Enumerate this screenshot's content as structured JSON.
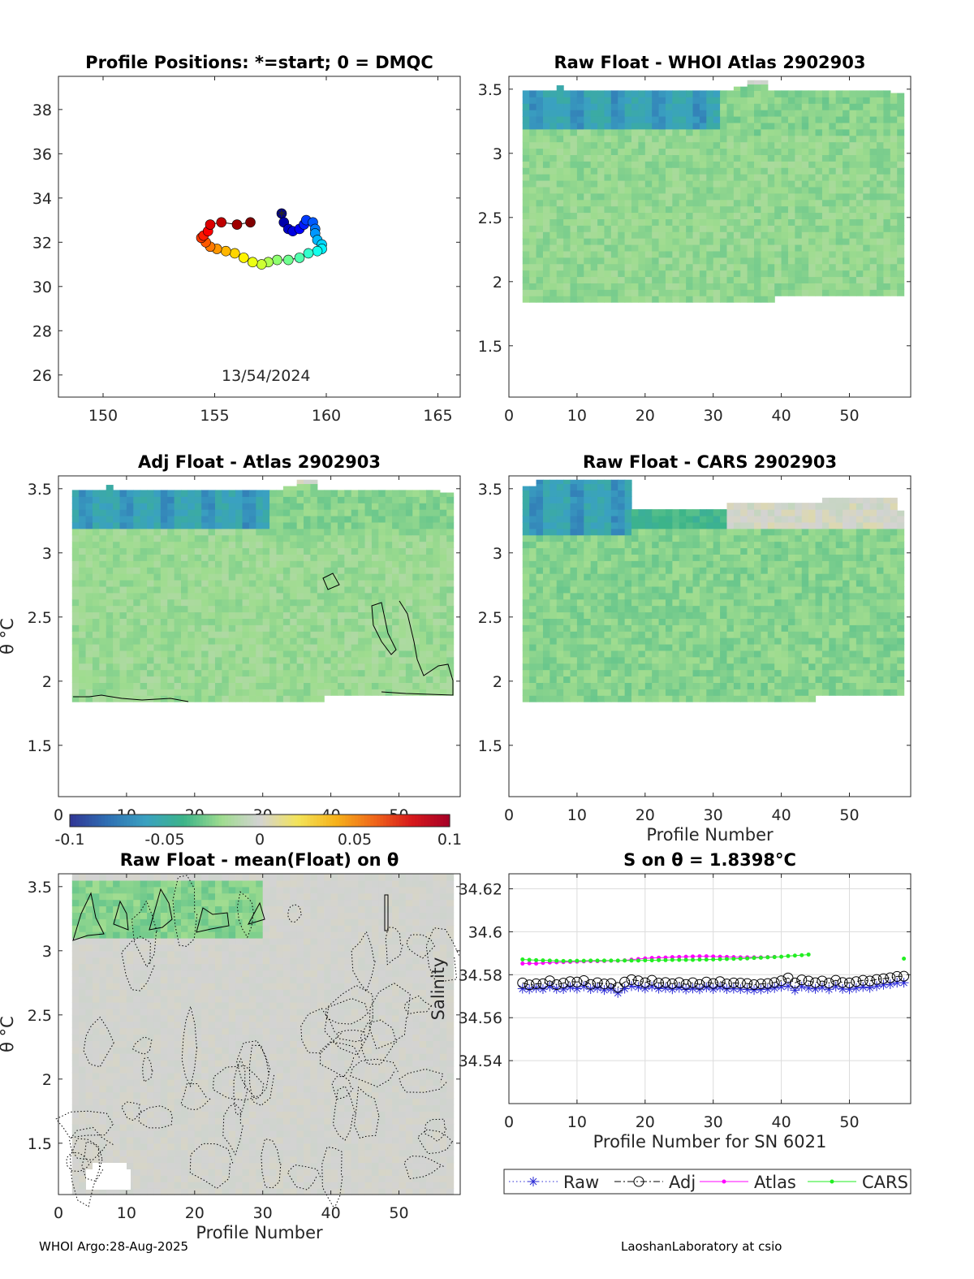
{
  "footer": {
    "left": "WHOI Argo:28-Aug-2025",
    "right": "LaoshanLaboratory at csio"
  },
  "colors": {
    "axis": "#262626",
    "grid": "#dcdcdc",
    "raw": "#2a2ad6",
    "adj": "#000000",
    "atlas": "#ff00ff",
    "cars": "#22ee22",
    "contour": "#000000",
    "colormap": [
      "#313695",
      "#2f6fb3",
      "#3aa1c1",
      "#3cb489",
      "#9fdc8f",
      "#d3d3d3",
      "#f3e45a",
      "#f6b21a",
      "#f0681a",
      "#d7191c",
      "#a50026"
    ]
  },
  "chart_data": [
    {
      "id": "positions",
      "type": "scatter",
      "title": "Profile Positions: *=start; 0 = DMQC",
      "xlim": [
        148,
        166
      ],
      "ylim": [
        25,
        39.5
      ],
      "xticks": [
        150,
        155,
        160,
        165
      ],
      "yticks": [
        26,
        28,
        30,
        32,
        34,
        36,
        38
      ],
      "annotation": "13/54/2024",
      "start_marker": "*",
      "track": [
        [
          158.0,
          33.3
        ],
        [
          158.1,
          32.9
        ],
        [
          158.3,
          32.6
        ],
        [
          158.5,
          32.5
        ],
        [
          158.8,
          32.6
        ],
        [
          159.0,
          32.8
        ],
        [
          159.1,
          33.0
        ],
        [
          159.4,
          32.9
        ],
        [
          159.5,
          32.6
        ],
        [
          159.5,
          32.4
        ],
        [
          159.6,
          32.1
        ],
        [
          159.8,
          31.9
        ],
        [
          159.8,
          31.7
        ],
        [
          159.6,
          31.6
        ],
        [
          159.2,
          31.5
        ],
        [
          158.8,
          31.3
        ],
        [
          158.3,
          31.2
        ],
        [
          157.8,
          31.2
        ],
        [
          157.4,
          31.1
        ],
        [
          157.1,
          31.0
        ],
        [
          156.7,
          31.1
        ],
        [
          156.3,
          31.3
        ],
        [
          155.9,
          31.5
        ],
        [
          155.5,
          31.6
        ],
        [
          155.1,
          31.7
        ],
        [
          154.8,
          31.8
        ],
        [
          154.6,
          32.0
        ],
        [
          154.4,
          32.2
        ],
        [
          154.5,
          32.3
        ],
        [
          154.7,
          32.5
        ],
        [
          154.8,
          32.8
        ],
        [
          155.3,
          32.9
        ],
        [
          156.0,
          32.8
        ],
        [
          156.6,
          32.9
        ]
      ]
    },
    {
      "id": "raw-atlas",
      "type": "heatmap",
      "title": "Raw Float - WHOI Atlas  2902903",
      "xlim": [
        0,
        59
      ],
      "ylim": [
        1.1,
        3.6
      ],
      "xticks": [
        0,
        10,
        20,
        30,
        40,
        50
      ],
      "yticks": [
        1.5,
        2,
        2.5,
        3,
        3.5
      ],
      "clim": [
        -0.1,
        0.1
      ],
      "profiles": [
        2,
        58
      ],
      "bottom_theta": [
        [
          2,
          39,
          1.84
        ],
        [
          39,
          58,
          1.89
        ]
      ],
      "top_theta": [
        [
          2,
          7,
          3.49
        ],
        [
          7,
          8,
          3.53
        ],
        [
          8,
          33,
          3.49
        ],
        [
          33,
          35,
          3.52
        ],
        [
          35,
          38,
          3.57
        ],
        [
          38,
          56,
          3.49
        ],
        [
          56,
          58,
          3.47
        ]
      ],
      "anomaly_layers": [
        {
          "theta_from": 3.15,
          "theta_to": 3.5,
          "value": -0.055,
          "profiles": [
            2,
            31
          ]
        },
        {
          "theta_from": 3.1,
          "theta_to": 3.5,
          "value": -0.025,
          "profiles": [
            31,
            58
          ]
        },
        {
          "theta_from": 1.8,
          "theta_to": 3.15,
          "value": -0.022,
          "profiles": [
            2,
            58
          ]
        }
      ],
      "contour_level": 0
    },
    {
      "id": "adj-atlas",
      "type": "heatmap",
      "title": "Adj Float - Atlas  2902903",
      "ylabel": "θ °C",
      "xlim": [
        0,
        59
      ],
      "ylim": [
        1.1,
        3.6
      ],
      "xticks": [
        0,
        10,
        20,
        30,
        40,
        50
      ],
      "yticks": [
        1.5,
        2,
        2.5,
        3,
        3.5
      ],
      "clim": [
        -0.1,
        0.1
      ],
      "profiles": [
        2,
        58
      ],
      "bottom_theta": [
        [
          2,
          39,
          1.84
        ],
        [
          39,
          58,
          1.89
        ]
      ],
      "top_theta": [
        [
          2,
          7,
          3.49
        ],
        [
          7,
          8,
          3.53
        ],
        [
          8,
          33,
          3.49
        ],
        [
          33,
          35,
          3.52
        ],
        [
          35,
          38,
          3.57
        ],
        [
          38,
          56,
          3.49
        ],
        [
          56,
          58,
          3.47
        ]
      ],
      "anomaly_layers": [
        {
          "theta_from": 3.15,
          "theta_to": 3.5,
          "value": -0.055,
          "profiles": [
            2,
            31
          ]
        },
        {
          "theta_from": 3.1,
          "theta_to": 3.5,
          "value": -0.025,
          "profiles": [
            31,
            58
          ]
        },
        {
          "theta_from": 1.8,
          "theta_to": 3.15,
          "value": -0.02,
          "profiles": [
            2,
            58
          ]
        }
      ],
      "contour_level": 0
    },
    {
      "id": "raw-cars",
      "type": "heatmap",
      "title": "Raw Float - CARS  2902903",
      "xlabel": "Profile Number",
      "xlim": [
        0,
        59
      ],
      "ylim": [
        1.1,
        3.6
      ],
      "xticks": [
        0,
        10,
        20,
        30,
        40,
        50
      ],
      "yticks": [
        1.5,
        2,
        2.5,
        3,
        3.5
      ],
      "clim": [
        -0.1,
        0.1
      ],
      "profiles": [
        2,
        58
      ],
      "bottom_theta": [
        [
          2,
          45,
          1.84
        ],
        [
          45,
          58,
          1.89
        ]
      ],
      "top_theta": [
        [
          2,
          4,
          3.52
        ],
        [
          4,
          18,
          3.57
        ],
        [
          18,
          32,
          3.34
        ],
        [
          32,
          46,
          3.39
        ],
        [
          46,
          57,
          3.43
        ],
        [
          57,
          58,
          3.33
        ]
      ],
      "anomaly_layers": [
        {
          "theta_from": 3.12,
          "theta_to": 3.55,
          "value": -0.055,
          "profiles": [
            2,
            18
          ]
        },
        {
          "theta_from": 3.15,
          "theta_to": 3.35,
          "value": -0.04,
          "profiles": [
            18,
            32
          ]
        },
        {
          "theta_from": 1.8,
          "theta_to": 3.15,
          "value": -0.025,
          "profiles": [
            2,
            58
          ]
        }
      ],
      "contour_level": 0
    },
    {
      "id": "raw-mean",
      "type": "heatmap",
      "title": "Raw Float - mean(Float) on θ",
      "xlabel": "Profile Number",
      "ylabel": "θ °C",
      "xlim": [
        0,
        59
      ],
      "ylim": [
        1.1,
        3.6
      ],
      "xticks": [
        0,
        10,
        20,
        30,
        40,
        50
      ],
      "yticks": [
        1.5,
        2,
        2.5,
        3,
        3.5
      ],
      "clim": [
        -0.1,
        0.1
      ],
      "profiles": [
        2,
        58
      ],
      "anomaly_layers": [
        {
          "theta_from": 3.05,
          "theta_to": 3.5,
          "value": -0.025,
          "profiles": [
            2,
            30
          ]
        },
        {
          "theta_from": 1.1,
          "theta_to": 3.6,
          "value": 0.0,
          "profiles": [
            2,
            58
          ]
        }
      ],
      "contour_level": 0
    },
    {
      "id": "salinity",
      "type": "line",
      "title": "S on θ = 1.8398°C",
      "xlabel": "Profile Number for SN 6021",
      "ylabel": "Salinity",
      "xlim": [
        0,
        59
      ],
      "ylim": [
        34.52,
        34.627
      ],
      "xticks": [
        0,
        10,
        20,
        30,
        40,
        50
      ],
      "yticks": [
        34.54,
        34.56,
        34.58,
        34.6,
        34.62
      ],
      "ytick_labels": [
        "34.54",
        "34.56",
        "34.58",
        "34.6",
        "34.62"
      ],
      "grid": true,
      "legend": "bottom-outside",
      "x": [
        2,
        3,
        4,
        5,
        6,
        7,
        8,
        9,
        10,
        11,
        12,
        13,
        14,
        15,
        16,
        17,
        18,
        19,
        20,
        21,
        22,
        23,
        24,
        25,
        26,
        27,
        28,
        29,
        30,
        31,
        32,
        33,
        34,
        35,
        36,
        37,
        38,
        39,
        40,
        41,
        42,
        43,
        44,
        45,
        46,
        47,
        48,
        49,
        50,
        51,
        52,
        53,
        54,
        55,
        56,
        57,
        58
      ],
      "series": [
        {
          "name": "Raw",
          "marker": "star",
          "style": "dotted",
          "values": [
            34.5735,
            34.5732,
            34.5738,
            34.5733,
            34.5745,
            34.5734,
            34.5733,
            34.5742,
            34.5735,
            34.5746,
            34.5733,
            34.5738,
            34.5729,
            34.5734,
            34.5715,
            34.5735,
            34.5747,
            34.5743,
            34.5736,
            34.5745,
            34.5735,
            34.5738,
            34.5732,
            34.5739,
            34.5731,
            34.5736,
            34.5732,
            34.5741,
            34.5733,
            34.5741,
            34.5733,
            34.5735,
            34.5733,
            34.5731,
            34.5729,
            34.5731,
            34.5733,
            34.5738,
            34.5744,
            34.5747,
            34.5728,
            34.5745,
            34.5738,
            34.5734,
            34.5741,
            34.5732,
            34.5745,
            34.5734,
            34.5732,
            34.5738,
            34.5743,
            34.5739,
            34.5747,
            34.5753,
            34.5756,
            34.5763,
            34.5763
          ]
        },
        {
          "name": "Adj",
          "marker": "circle",
          "style": "dashdot",
          "values": [
            34.5762,
            34.5753,
            34.5758,
            34.5758,
            34.5772,
            34.5754,
            34.5761,
            34.5768,
            34.5766,
            34.5773,
            34.5755,
            34.5763,
            34.5757,
            34.5759,
            34.5741,
            34.5766,
            34.5777,
            34.5772,
            34.5763,
            34.5774,
            34.5761,
            34.5764,
            34.5758,
            34.5764,
            34.5755,
            34.5763,
            34.5755,
            34.5766,
            34.5759,
            34.5768,
            34.5757,
            34.5762,
            34.5761,
            34.5759,
            34.5754,
            34.5757,
            34.5759,
            34.5764,
            34.5772,
            34.5785,
            34.5762,
            34.5776,
            34.5771,
            34.5763,
            34.5771,
            34.5761,
            34.5774,
            34.5764,
            34.5762,
            34.5768,
            34.5774,
            34.5771,
            34.5778,
            34.5782,
            34.5786,
            34.5792,
            34.5793
          ]
        },
        {
          "name": "Atlas",
          "marker": "dot",
          "style": "solid",
          "values": [
            34.5852,
            34.5853,
            34.5852,
            34.5855,
            34.5857,
            34.5858,
            34.5859,
            34.586,
            34.5861,
            34.5862,
            34.5863,
            34.5863,
            34.5864,
            34.5865,
            34.5865,
            34.5867,
            34.587,
            34.5873,
            34.5876,
            34.5878,
            34.5879,
            34.588,
            34.5882,
            34.5883,
            34.5884,
            34.5885,
            34.5886,
            34.5886,
            34.5885,
            34.5884,
            34.5883,
            34.5882,
            34.5881,
            34.5881,
            34.5881,
            34.5881,
            34.5882,
            34.5883,
            null,
            null,
            null,
            null,
            null,
            null,
            null,
            null,
            null,
            null,
            null,
            null,
            null,
            null,
            null,
            null,
            null,
            null,
            null
          ]
        },
        {
          "name": "CARS",
          "marker": "dot",
          "style": "solid",
          "values": [
            34.5871,
            34.5869,
            34.5868,
            34.5867,
            34.5866,
            34.5865,
            34.5864,
            34.5864,
            34.5865,
            34.5865,
            34.5866,
            34.5866,
            34.5866,
            34.5866,
            34.5866,
            34.5866,
            34.5866,
            34.5866,
            34.5867,
            34.5867,
            34.5868,
            34.5868,
            34.5869,
            34.5869,
            34.5869,
            34.5869,
            34.587,
            34.587,
            34.5871,
            34.5872,
            34.5873,
            34.5874,
            34.5875,
            34.5876,
            34.5878,
            34.5879,
            34.5881,
            34.5882,
            34.5884,
            34.5887,
            34.5889,
            34.5891,
            34.5894,
            null,
            null,
            null,
            null,
            null,
            null,
            null,
            null,
            null,
            null,
            null,
            null,
            null,
            34.5875
          ]
        }
      ]
    }
  ],
  "colorbar": {
    "ticks": [
      -0.1,
      -0.05,
      0,
      0.05,
      0.1
    ],
    "tick_labels": [
      "-0.1",
      "-0.05",
      "0",
      "0.05",
      "0.1"
    ]
  }
}
